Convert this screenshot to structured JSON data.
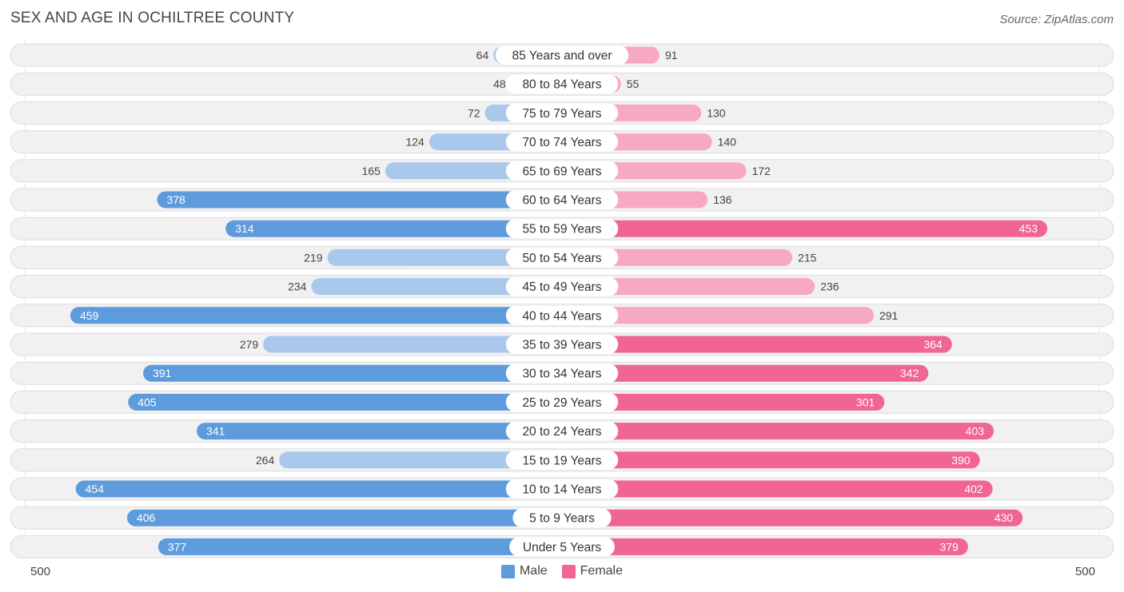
{
  "title": "SEX AND AGE IN OCHILTREE COUNTY",
  "source": "Source: ZipAtlas.com",
  "axis": {
    "left_label": "500",
    "right_label": "500"
  },
  "legend": {
    "male_label": "Male",
    "female_label": "Female"
  },
  "colors": {
    "male_strong": "#5e9bdc",
    "male_light": "#a9c9ec",
    "female_strong": "#f06592",
    "female_light": "#f7a8c2",
    "track": "#f1f1f1",
    "track_border": "#dddddd"
  },
  "chart_data": {
    "type": "bar",
    "orientation": "horizontal-diverging",
    "title": "SEX AND AGE IN OCHILTREE COUNTY",
    "xlim": [
      -500,
      500
    ],
    "categories": [
      "85 Years and over",
      "80 to 84 Years",
      "75 to 79 Years",
      "70 to 74 Years",
      "65 to 69 Years",
      "60 to 64 Years",
      "55 to 59 Years",
      "50 to 54 Years",
      "45 to 49 Years",
      "40 to 44 Years",
      "35 to 39 Years",
      "30 to 34 Years",
      "25 to 29 Years",
      "20 to 24 Years",
      "15 to 19 Years",
      "10 to 14 Years",
      "5 to 9 Years",
      "Under 5 Years"
    ],
    "series": [
      {
        "name": "Male",
        "values": [
          64,
          48,
          72,
          124,
          165,
          378,
          314,
          219,
          234,
          459,
          279,
          391,
          405,
          341,
          264,
          454,
          406,
          377
        ]
      },
      {
        "name": "Female",
        "values": [
          91,
          55,
          130,
          140,
          172,
          136,
          453,
          215,
          236,
          291,
          364,
          342,
          301,
          403,
          390,
          402,
          430,
          379
        ]
      }
    ]
  }
}
